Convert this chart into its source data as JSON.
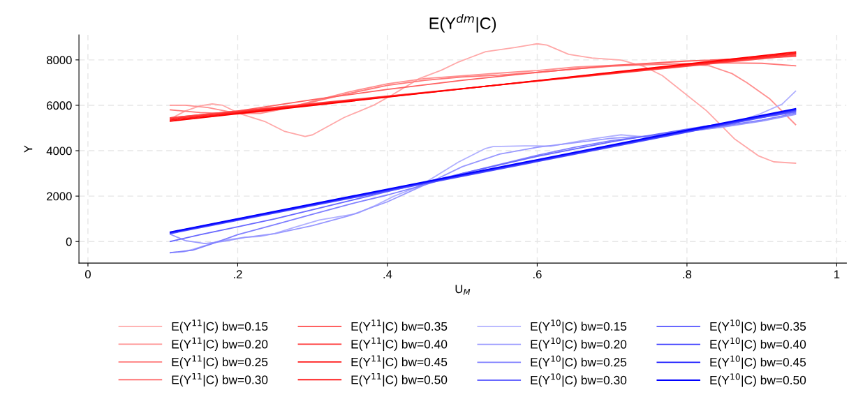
{
  "chart_data": {
    "type": "line",
    "title": "E(Y$^{dm}$|C)",
    "xlabel": "U$_{M}$",
    "ylabel": "Y",
    "xlim": [
      -0.012,
      1.013
    ],
    "ylim": [
      -950,
      9100
    ],
    "xticks": [
      0,
      {
        "value": 0.2,
        "label": ".2"
      },
      {
        "value": 0.4,
        "label": ".4"
      },
      {
        "value": 0.6,
        "label": ".6"
      },
      {
        "value": 0.8,
        "label": ".8"
      },
      1
    ],
    "yticks": [
      0,
      2000,
      4000,
      6000,
      8000
    ],
    "grid": true,
    "legend": "bottom",
    "marker": "none",
    "line_style": "solid",
    "series": [
      {
        "name": "E(Y$^{11}$|C) bw=0.15",
        "color": "#ffa8a8",
        "x": [
          0.11,
          0.13,
          0.15,
          0.166,
          0.18,
          0.202,
          0.236,
          0.262,
          0.29,
          0.3,
          0.342,
          0.382,
          0.406,
          0.442,
          0.472,
          0.495,
          0.511,
          0.531,
          0.57,
          0.6,
          0.613,
          0.642,
          0.673,
          0.712,
          0.743,
          0.767,
          0.826,
          0.864,
          0.896,
          0.916,
          0.945
        ],
        "values": [
          5400,
          5750,
          5980,
          6060,
          6000,
          5640,
          5290,
          4860,
          4630,
          4700,
          5460,
          6010,
          6450,
          7170,
          7545,
          7910,
          8110,
          8360,
          8545,
          8710,
          8650,
          8245,
          8085,
          7990,
          7705,
          7310,
          5765,
          4505,
          3765,
          3510,
          3450
        ]
      },
      {
        "name": "E(Y$^{11}$|C) bw=0.20",
        "color": "#ff9090",
        "x": [
          0.11,
          0.13,
          0.16,
          0.2,
          0.23,
          0.26,
          0.3,
          0.35,
          0.4,
          0.45,
          0.5,
          0.55,
          0.6,
          0.65,
          0.7,
          0.75,
          0.8,
          0.83,
          0.86,
          0.88,
          0.91,
          0.945
        ],
        "values": [
          6000,
          6000,
          5900,
          5640,
          5640,
          5830,
          6180,
          6600,
          6950,
          7180,
          7300,
          7420,
          7530,
          7680,
          7760,
          7800,
          7820,
          7740,
          7400,
          7000,
          6300,
          5150
        ]
      },
      {
        "name": "E(Y$^{11}$|C) bw=0.25",
        "color": "#ff7878",
        "x": [
          0.11,
          0.15,
          0.2,
          0.25,
          0.3,
          0.35,
          0.4,
          0.45,
          0.5,
          0.55,
          0.6,
          0.65,
          0.7,
          0.75,
          0.8,
          0.85,
          0.9,
          0.945
        ],
        "values": [
          5800,
          5680,
          5620,
          5780,
          6150,
          6530,
          6880,
          7100,
          7250,
          7330,
          7450,
          7600,
          7720,
          7790,
          7840,
          7870,
          7850,
          7740
        ]
      },
      {
        "name": "E(Y$^{11}$|C) bw=0.30",
        "color": "#ff6060",
        "x": [
          0.11,
          0.2,
          0.3,
          0.4,
          0.5,
          0.6,
          0.7,
          0.8,
          0.945
        ],
        "values": [
          5450,
          5750,
          6250,
          6700,
          7100,
          7450,
          7750,
          7950,
          8150
        ]
      },
      {
        "name": "E(Y$^{11}$|C) bw=0.35",
        "color": "#ff4848",
        "x": [
          0.11,
          0.945
        ],
        "values": [
          5450,
          8200
        ]
      },
      {
        "name": "E(Y$^{11}$|C) bw=0.40",
        "color": "#ff3030",
        "x": [
          0.11,
          0.945
        ],
        "values": [
          5400,
          8250
        ]
      },
      {
        "name": "E(Y$^{11}$|C) bw=0.45",
        "color": "#ff1818",
        "x": [
          0.11,
          0.945
        ],
        "values": [
          5350,
          8300
        ]
      },
      {
        "name": "E(Y$^{11}$|C) bw=0.50",
        "color": "#ff0000",
        "x": [
          0.11,
          0.945
        ],
        "values": [
          5300,
          8350
        ]
      },
      {
        "name": "E(Y$^{10}$|C) bw=0.15",
        "color": "#b0b0ff",
        "x": [
          0.11,
          0.128,
          0.142,
          0.175,
          0.209,
          0.229,
          0.249,
          0.275,
          0.309,
          0.359,
          0.382,
          0.409,
          0.442,
          0.459,
          0.495,
          0.531,
          0.541,
          0.583,
          0.618,
          0.67,
          0.712,
          0.745,
          0.792,
          0.847,
          0.896,
          0.927,
          0.945
        ],
        "values": [
          -490,
          -450,
          -330,
          20,
          185,
          215,
          350,
          620,
          950,
          1230,
          1560,
          2000,
          2430,
          2770,
          3500,
          4100,
          4180,
          4215,
          4200,
          4505,
          4700,
          4600,
          4815,
          5045,
          5600,
          6050,
          6620
        ]
      },
      {
        "name": "E(Y$^{10}$|C) bw=0.20",
        "color": "#9898ff",
        "x": [
          0.11,
          0.13,
          0.156,
          0.18,
          0.21,
          0.25,
          0.3,
          0.35,
          0.4,
          0.45,
          0.5,
          0.55,
          0.6,
          0.65,
          0.7,
          0.75,
          0.8,
          0.85,
          0.9,
          0.945
        ],
        "values": [
          320,
          40,
          -90,
          0,
          180,
          350,
          700,
          1150,
          1750,
          2500,
          3300,
          3850,
          4150,
          4350,
          4550,
          4650,
          4850,
          5050,
          5300,
          5600
        ]
      },
      {
        "name": "E(Y$^{10}$|C) bw=0.25",
        "color": "#8080ff",
        "x": [
          0.11,
          0.14,
          0.17,
          0.2,
          0.25,
          0.3,
          0.35,
          0.4,
          0.45,
          0.5,
          0.55,
          0.6,
          0.65,
          0.7,
          0.75,
          0.8,
          0.85,
          0.9,
          0.945
        ],
        "values": [
          -490,
          -380,
          -50,
          300,
          750,
          1200,
          1650,
          2050,
          2500,
          3000,
          3400,
          3800,
          4150,
          4450,
          4650,
          4900,
          5100,
          5350,
          5650
        ]
      },
      {
        "name": "E(Y$^{10}$|C) bw=0.30",
        "color": "#6868ff",
        "x": [
          0.11,
          0.15,
          0.2,
          0.25,
          0.3,
          0.35,
          0.4,
          0.45,
          0.5,
          0.6,
          0.7,
          0.8,
          0.945
        ],
        "values": [
          0,
          300,
          650,
          1000,
          1400,
          1800,
          2200,
          2600,
          3000,
          3750,
          4400,
          4950,
          5700
        ]
      },
      {
        "name": "E(Y$^{10}$|C) bw=0.35",
        "color": "#5050ff",
        "x": [
          0.11,
          0.945
        ],
        "values": [
          350,
          5750
        ]
      },
      {
        "name": "E(Y$^{10}$|C) bw=0.40",
        "color": "#3838ff",
        "x": [
          0.11,
          0.945
        ],
        "values": [
          380,
          5790
        ]
      },
      {
        "name": "E(Y$^{10}$|C) bw=0.45",
        "color": "#1c1cff",
        "x": [
          0.11,
          0.945
        ],
        "values": [
          400,
          5820
        ]
      },
      {
        "name": "E(Y$^{10}$|C) bw=0.50",
        "color": "#0000ff",
        "x": [
          0.11,
          0.945
        ],
        "values": [
          420,
          5850
        ]
      }
    ]
  }
}
